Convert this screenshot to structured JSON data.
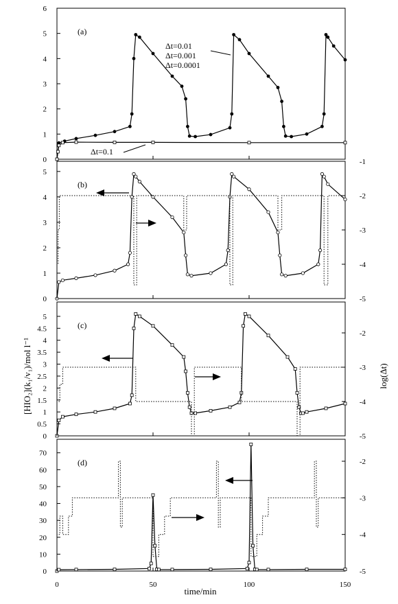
{
  "figure": {
    "x_axis_title": "time/min",
    "y_left_title": "[HIO₂](k₁/v₁)/mol l⁻¹",
    "y_right_title": "log(Δt)"
  },
  "chart_data": [
    {
      "panel_label": "(a)",
      "type": "line",
      "xlim": [
        0,
        150
      ],
      "ylim": [
        0,
        6
      ],
      "y_ticks": [
        "0",
        "1",
        "2",
        "3",
        "4",
        "5",
        "6"
      ],
      "x_ticks": [],
      "right_ticks": [],
      "annotations": [
        "Δt=0.01",
        "Δt=0.001",
        "Δt=0.0001",
        "Δt=0.1"
      ],
      "series": [
        {
          "name": "Δt=0.01",
          "style": "solid-filled-markers",
          "x": [
            0,
            1,
            4,
            10,
            20,
            30,
            38,
            39,
            40,
            41,
            43,
            50,
            60,
            65,
            67,
            68,
            69,
            72,
            80,
            90,
            91,
            92,
            95,
            100,
            110,
            115,
            117,
            118,
            119,
            122,
            130,
            138,
            139,
            140,
            141,
            144,
            150
          ],
          "y": [
            0,
            0.65,
            0.72,
            0.82,
            0.95,
            1.1,
            1.3,
            1.8,
            4.0,
            4.95,
            4.85,
            4.2,
            3.3,
            2.9,
            2.4,
            1.3,
            0.92,
            0.9,
            0.98,
            1.25,
            1.8,
            4.95,
            4.75,
            4.2,
            3.3,
            2.85,
            2.3,
            1.3,
            0.92,
            0.9,
            1.0,
            1.3,
            1.8,
            4.95,
            4.85,
            4.5,
            3.95
          ]
        },
        {
          "name": "Δt=0.1",
          "style": "open-square-markers",
          "x": [
            0,
            0.5,
            1,
            3,
            10,
            30,
            50,
            100,
            150
          ],
          "y": [
            0,
            0.3,
            0.55,
            0.66,
            0.68,
            0.67,
            0.67,
            0.66,
            0.66
          ]
        }
      ]
    },
    {
      "panel_label": "(b)",
      "type": "line",
      "xlim": [
        0,
        150
      ],
      "ylim": [
        0,
        5.4
      ],
      "y_ticks": [
        "0",
        "1",
        "2",
        "3",
        "4",
        "5"
      ],
      "x_ticks": [],
      "right_ylim": [
        -5,
        -1
      ],
      "right_ticks": [
        "-5",
        "-4",
        "-3",
        "-2",
        "-1"
      ],
      "series": [
        {
          "name": "HIO₂",
          "axis": "left",
          "style": "solid-open-circles",
          "x": [
            0,
            1,
            3,
            10,
            20,
            30,
            37,
            38,
            39,
            40,
            41,
            43,
            50,
            60,
            66,
            67,
            68,
            70,
            80,
            88,
            89,
            90,
            91,
            92,
            100,
            110,
            115,
            116,
            117,
            119,
            128,
            136,
            137,
            138,
            139,
            141,
            150
          ],
          "y": [
            0,
            0.65,
            0.72,
            0.8,
            0.92,
            1.1,
            1.35,
            1.8,
            4.0,
            4.9,
            4.8,
            4.6,
            4.0,
            3.2,
            2.6,
            1.7,
            0.95,
            0.9,
            1.0,
            1.35,
            1.9,
            4.0,
            4.9,
            4.8,
            4.3,
            3.4,
            2.6,
            1.7,
            0.95,
            0.9,
            1.0,
            1.35,
            1.9,
            4.9,
            4.8,
            4.5,
            3.9
          ]
        },
        {
          "name": "log(Δt)",
          "axis": "right",
          "style": "dotted",
          "x": [
            0,
            0,
            0.6,
            0.6,
            1.2,
            1.2,
            40,
            40,
            41.5,
            41.5,
            66,
            66,
            67.5,
            67.5,
            90,
            90,
            91.5,
            91.5,
            115,
            115,
            117,
            117,
            139,
            139,
            141,
            141,
            150
          ],
          "y": [
            -5,
            -4,
            -4,
            -3,
            -3,
            -2,
            -2,
            -4.6,
            -4.6,
            -2,
            -2,
            -3,
            -3,
            -2,
            -2,
            -4.6,
            -4.6,
            -2,
            -2,
            -3,
            -3,
            -2,
            -2,
            -4.6,
            -4.6,
            -2,
            -2
          ]
        }
      ]
    },
    {
      "panel_label": "(c)",
      "type": "line",
      "xlim": [
        0,
        150
      ],
      "ylim": [
        0,
        5.6
      ],
      "y_ticks": [
        "0",
        "0.5",
        "1",
        "1.5",
        "2",
        "2.5",
        "3",
        "3.5",
        "4",
        "4.5",
        "5"
      ],
      "x_ticks": [],
      "right_ylim": [
        -5,
        -1.1
      ],
      "right_ticks": [
        "-5",
        "-4",
        "-3",
        "-2"
      ],
      "series": [
        {
          "name": "HIO₂",
          "axis": "left",
          "style": "solid-open-squares",
          "x": [
            0,
            1,
            3,
            10,
            20,
            30,
            38,
            39,
            40,
            41,
            43,
            50,
            60,
            66,
            67,
            68,
            69,
            70,
            72,
            80,
            90,
            95,
            96,
            97,
            98,
            100,
            110,
            120,
            124,
            125,
            126,
            127,
            128,
            130,
            140,
            150
          ],
          "y": [
            0,
            0.65,
            0.8,
            0.9,
            1.0,
            1.15,
            1.35,
            1.7,
            4.5,
            5.1,
            5.0,
            4.6,
            3.8,
            3.3,
            2.7,
            1.8,
            1.2,
            0.95,
            0.95,
            1.05,
            1.2,
            1.4,
            1.8,
            4.6,
            5.1,
            5.0,
            4.2,
            3.3,
            2.8,
            1.8,
            1.2,
            0.95,
            0.95,
            1.0,
            1.15,
            1.35
          ]
        },
        {
          "name": "log(Δt)",
          "axis": "right",
          "style": "dotted",
          "x": [
            0,
            0,
            1.5,
            1.5,
            3,
            3,
            41,
            41,
            70,
            70,
            71.5,
            71.5,
            96,
            96,
            125,
            125,
            126.5,
            126.5,
            150
          ],
          "y": [
            -5,
            -4,
            -4,
            -3.5,
            -3.5,
            -3,
            -3,
            -4,
            -4,
            -5,
            -5,
            -3,
            -3,
            -4,
            -4,
            -5,
            -5,
            -3,
            -3
          ]
        }
      ]
    },
    {
      "panel_label": "(d)",
      "type": "line",
      "xlim": [
        0,
        150
      ],
      "ylim": [
        0,
        78
      ],
      "y_ticks": [
        "0",
        "10",
        "20",
        "30",
        "40",
        "50",
        "60",
        "70"
      ],
      "x_ticks": [
        "0",
        "50",
        "100",
        "150"
      ],
      "right_ylim": [
        -5,
        -1.4
      ],
      "right_ticks": [
        "-5",
        "-4",
        "-3",
        "-2"
      ],
      "series": [
        {
          "name": "HIO₂",
          "axis": "left",
          "style": "solid-open-squares",
          "x": [
            0,
            1,
            10,
            30,
            48,
            49,
            50,
            51,
            52,
            53,
            60,
            80,
            99,
            100,
            101,
            102,
            103,
            104,
            110,
            130,
            150
          ],
          "y": [
            0,
            0.8,
            0.9,
            1.0,
            1.5,
            4.5,
            45,
            15,
            1.0,
            0.9,
            0.9,
            1.0,
            1.5,
            5.0,
            75,
            15,
            1.0,
            0.9,
            0.9,
            1.0,
            1.0
          ]
        },
        {
          "name": "log(Δt)",
          "axis": "right",
          "style": "dotted",
          "x": [
            0,
            0,
            1.5,
            1.5,
            3,
            3,
            6,
            6,
            8,
            8,
            32,
            32,
            33,
            33,
            34,
            34,
            50,
            50,
            53,
            53,
            56,
            56,
            59,
            59,
            83,
            83,
            84,
            84,
            85,
            85,
            101,
            101,
            104,
            104,
            107,
            107,
            110,
            110,
            134,
            134,
            135,
            135,
            136,
            136,
            150
          ],
          "y": [
            -5,
            -4,
            -4,
            -3.5,
            -3.5,
            -4,
            -4,
            -3.5,
            -3.5,
            -3,
            -3,
            -2,
            -2,
            -3.8,
            -3.8,
            -3,
            -3,
            -4.6,
            -4.6,
            -4,
            -4,
            -3.5,
            -3.5,
            -3,
            -3,
            -2,
            -2,
            -3.8,
            -3.8,
            -3,
            -3,
            -4.6,
            -4.6,
            -4,
            -4,
            -3.5,
            -3.5,
            -3,
            -3,
            -2,
            -2,
            -3.8,
            -3.8,
            -3,
            -3
          ]
        }
      ]
    }
  ]
}
